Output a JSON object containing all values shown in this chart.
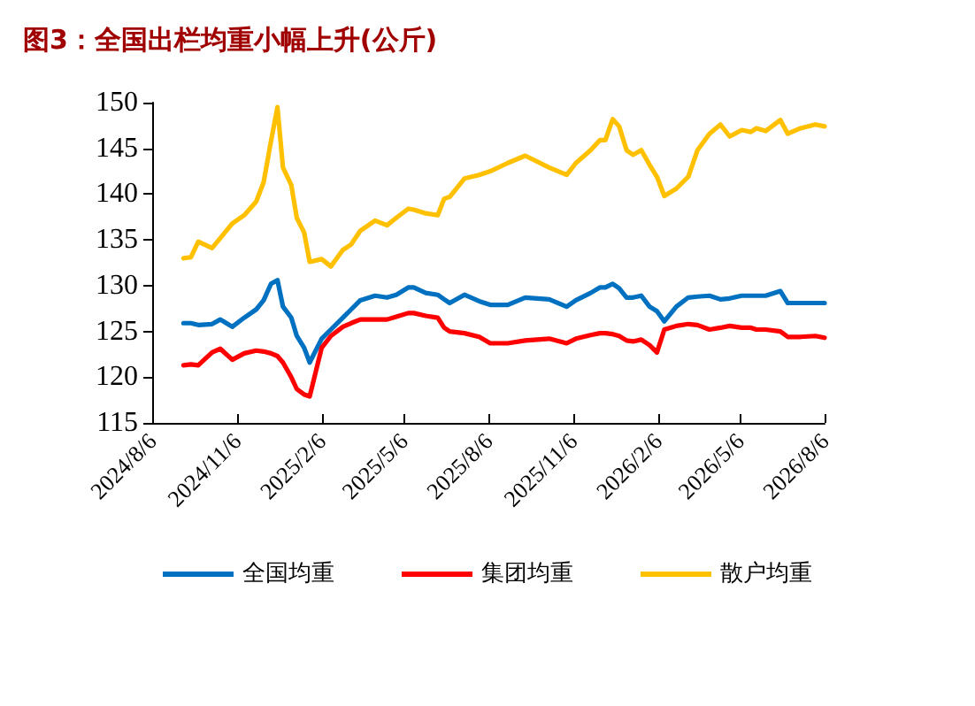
{
  "chart_data": {
    "type": "line",
    "title": "图3：全国出栏均重小幅上升(公斤)",
    "x": [
      "2024-09-09",
      "2024-09-17",
      "2024-09-25",
      "2024-10-10",
      "2024-10-19",
      "2024-11-01",
      "2024-11-14",
      "2024-11-27",
      "2024-12-05",
      "2024-12-13",
      "2024-12-20",
      "2024-12-26",
      "2025-01-04",
      "2025-01-10",
      "2025-01-18",
      "2025-01-24",
      "2025-02-06",
      "2025-02-16",
      "2025-03-01",
      "2025-03-10",
      "2025-03-20",
      "2025-04-05",
      "2025-04-18",
      "2025-04-28",
      "2025-05-11",
      "2025-05-17",
      "2025-05-30",
      "2025-06-12",
      "2025-06-19",
      "2025-06-25",
      "2025-07-11",
      "2025-07-27",
      "2025-08-08",
      "2025-08-27",
      "2025-09-15",
      "2025-10-11",
      "2025-10-30",
      "2025-11-09",
      "2025-11-25",
      "2025-12-05",
      "2025-12-11",
      "2025-12-19",
      "2025-12-26",
      "2026-01-03",
      "2026-01-10",
      "2026-01-19",
      "2026-01-28",
      "2026-02-05",
      "2026-02-13",
      "2026-02-26",
      "2026-03-11",
      "2026-03-21",
      "2026-04-03",
      "2026-04-15",
      "2026-04-25",
      "2026-05-08",
      "2026-05-18",
      "2026-05-24",
      "2026-06-03",
      "2026-06-19",
      "2026-06-27",
      "2026-07-11",
      "2026-07-27",
      "2026-08-06"
    ],
    "series": [
      {
        "name": "全国均重",
        "color": "#0070c0",
        "values": [
          125.9,
          125.9,
          125.7,
          125.8,
          126.3,
          125.5,
          126.5,
          127.4,
          128.4,
          130.2,
          130.6,
          127.7,
          126.5,
          124.5,
          123.2,
          121.6,
          124.2,
          125.2,
          126.5,
          127.4,
          128.4,
          128.9,
          128.7,
          129.0,
          129.8,
          129.8,
          129.2,
          129.0,
          128.5,
          128.1,
          129.0,
          128.3,
          127.9,
          127.9,
          128.7,
          128.5,
          127.7,
          128.4,
          129.2,
          129.8,
          129.8,
          130.2,
          129.7,
          128.7,
          128.7,
          128.9,
          127.7,
          127.2,
          126.1,
          127.7,
          128.7,
          128.8,
          128.9,
          128.5,
          128.6,
          128.9,
          128.9,
          128.9,
          128.9,
          129.4,
          128.1,
          128.1,
          128.1,
          128.1
        ]
      },
      {
        "name": "集团均重",
        "color": "#ff0000",
        "values": [
          121.3,
          121.4,
          121.3,
          122.7,
          123.1,
          121.9,
          122.6,
          122.9,
          122.8,
          122.6,
          122.3,
          121.6,
          120.0,
          118.7,
          118.1,
          117.9,
          123.2,
          124.5,
          125.5,
          125.9,
          126.3,
          126.3,
          126.3,
          126.6,
          127.0,
          127.0,
          126.7,
          126.5,
          125.4,
          125.0,
          124.8,
          124.4,
          123.7,
          123.7,
          124.0,
          124.2,
          123.7,
          124.2,
          124.6,
          124.8,
          124.8,
          124.7,
          124.5,
          124.0,
          123.9,
          124.1,
          123.5,
          122.7,
          125.2,
          125.6,
          125.8,
          125.7,
          125.2,
          125.4,
          125.6,
          125.4,
          125.4,
          125.2,
          125.2,
          125.0,
          124.4,
          124.4,
          124.5,
          124.3
        ]
      },
      {
        "name": "散户均重",
        "color": "#ffc000",
        "values": [
          133.0,
          133.1,
          134.8,
          134.1,
          135.2,
          136.8,
          137.7,
          139.2,
          141.3,
          145.8,
          149.5,
          142.9,
          141.0,
          137.4,
          135.8,
          132.6,
          132.9,
          132.1,
          133.9,
          134.5,
          136.0,
          137.1,
          136.6,
          137.4,
          138.4,
          138.3,
          137.9,
          137.7,
          139.5,
          139.7,
          141.7,
          142.1,
          142.5,
          143.4,
          144.2,
          142.9,
          142.1,
          143.4,
          144.8,
          145.9,
          145.9,
          148.2,
          147.4,
          144.8,
          144.3,
          144.8,
          143.2,
          141.9,
          139.8,
          140.6,
          141.9,
          144.8,
          146.6,
          147.6,
          146.3,
          147.0,
          146.8,
          147.2,
          146.9,
          148.1,
          146.6,
          147.2,
          147.6,
          147.4
        ]
      }
    ],
    "xlim": [
      "2024-08-06",
      "2026-08-06"
    ],
    "xticks": [
      {
        "value": "2024-08-06",
        "label": "2024/8/6"
      },
      {
        "value": "2024-11-06",
        "label": "2024/11/6"
      },
      {
        "value": "2025-02-06",
        "label": "2025/2/6"
      },
      {
        "value": "2025-05-06",
        "label": "2025/5/6"
      },
      {
        "value": "2025-08-06",
        "label": "2025/8/6"
      },
      {
        "value": "2025-11-06",
        "label": "2025/11/6"
      },
      {
        "value": "2026-02-06",
        "label": "2026/2/6"
      },
      {
        "value": "2026-05-06",
        "label": "2026/5/6"
      },
      {
        "value": "2026-08-06",
        "label": "2026/8/6"
      }
    ],
    "ylim": [
      115,
      150
    ],
    "yticks": [
      115,
      120,
      125,
      130,
      135,
      140,
      145,
      150
    ],
    "grid": false,
    "legend": "bottom",
    "marker": "none",
    "line_style": "solid"
  }
}
